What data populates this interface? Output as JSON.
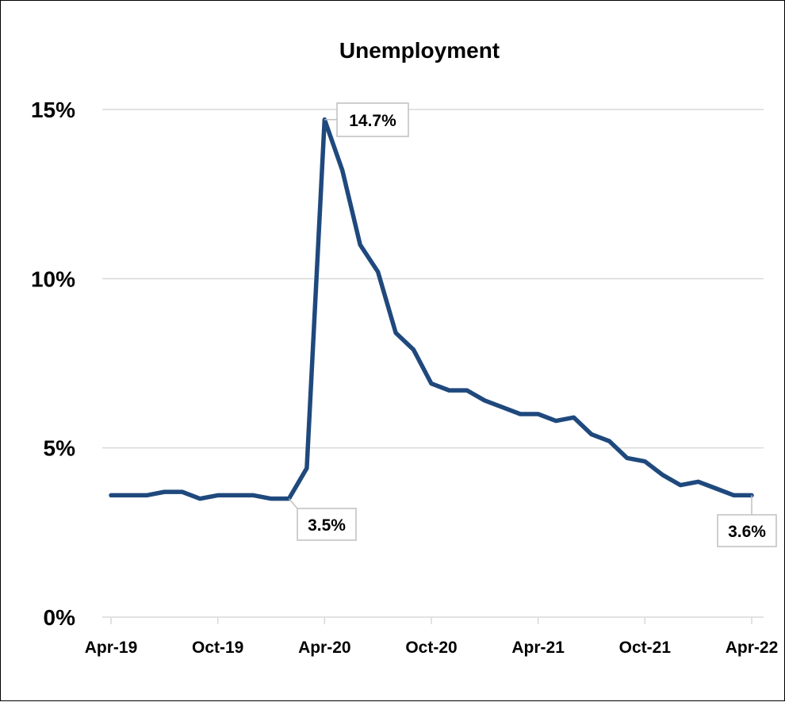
{
  "chart_data": {
    "type": "line",
    "title": "Unemployment",
    "xlabel": "",
    "ylabel": "",
    "ylim": [
      0,
      15
    ],
    "yticks": [
      "0%",
      "5%",
      "10%",
      "15%"
    ],
    "ytick_values": [
      0,
      5,
      10,
      15
    ],
    "grid": true,
    "legend": "none",
    "line_color": "#1F497D",
    "x_tick_labels": [
      "Apr-19",
      "Oct-19",
      "Apr-20",
      "Oct-20",
      "Apr-21",
      "Oct-21",
      "Apr-22"
    ],
    "x": [
      "2019-04",
      "2019-05",
      "2019-06",
      "2019-07",
      "2019-08",
      "2019-09",
      "2019-10",
      "2019-11",
      "2019-12",
      "2020-01",
      "2020-02",
      "2020-03",
      "2020-04",
      "2020-05",
      "2020-06",
      "2020-07",
      "2020-08",
      "2020-09",
      "2020-10",
      "2020-11",
      "2020-12",
      "2021-01",
      "2021-02",
      "2021-03",
      "2021-04",
      "2021-05",
      "2021-06",
      "2021-07",
      "2021-08",
      "2021-09",
      "2021-10",
      "2021-11",
      "2021-12",
      "2022-01",
      "2022-02",
      "2022-03",
      "2022-04"
    ],
    "series": [
      {
        "values": [
          3.6,
          3.6,
          3.6,
          3.7,
          3.7,
          3.5,
          3.6,
          3.6,
          3.6,
          3.5,
          3.5,
          4.4,
          14.7,
          13.2,
          11.0,
          10.2,
          8.4,
          7.9,
          6.9,
          6.7,
          6.7,
          6.4,
          6.2,
          6.0,
          6.0,
          5.8,
          5.9,
          5.4,
          5.2,
          4.7,
          4.6,
          4.2,
          3.9,
          4.0,
          3.8,
          3.6,
          3.6
        ]
      }
    ],
    "annotations": [
      {
        "label": "14.7%",
        "index": 12
      },
      {
        "label": "3.5%",
        "index": 10
      },
      {
        "label": "3.6%",
        "index": 36
      }
    ]
  }
}
